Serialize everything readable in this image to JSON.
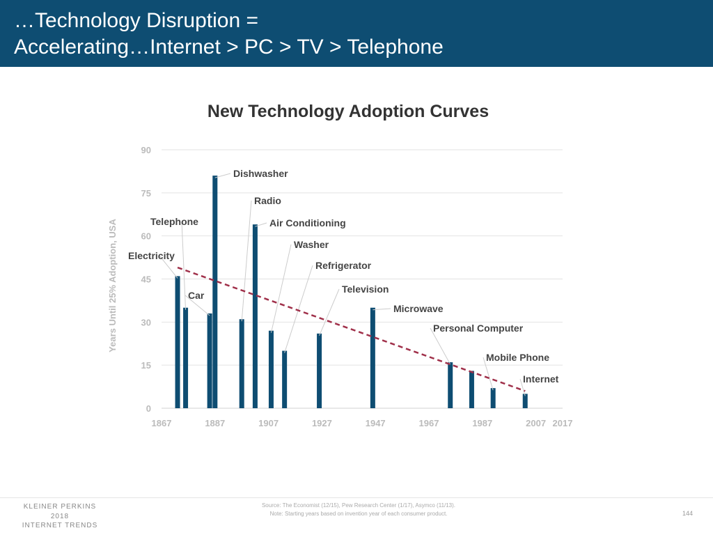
{
  "header": {
    "line1": "…Technology Disruption =",
    "line2": "Accelerating…Internet > PC > TV > Telephone",
    "bg": "#0e4d72"
  },
  "chart_data": {
    "type": "bar",
    "title": "New Technology Adoption Curves",
    "ylabel": "Years Until 25% Adoption, USA",
    "xlabel": "",
    "xlim": [
      1867,
      2017
    ],
    "ylim": [
      0,
      90
    ],
    "xticks": [
      "1867",
      "1887",
      "1907",
      "1927",
      "1947",
      "1967",
      "1987",
      "2007",
      "2017"
    ],
    "yticks": [
      "0",
      "15",
      "30",
      "45",
      "60",
      "75",
      "90"
    ],
    "grid": true,
    "bar_color": "#0e4d72",
    "bars": [
      {
        "label": "Electricity",
        "year": 1873,
        "value": 46
      },
      {
        "label": "Telephone",
        "year": 1876,
        "value": 35
      },
      {
        "label": "Car",
        "year": 1885,
        "value": 33
      },
      {
        "label": "Dishwasher",
        "year": 1887,
        "value": 81
      },
      {
        "label": "Radio",
        "year": 1897,
        "value": 31
      },
      {
        "label": "Air Conditioning",
        "year": 1902,
        "value": 64
      },
      {
        "label": "Washer",
        "year": 1908,
        "value": 27
      },
      {
        "label": "Refrigerator",
        "year": 1913,
        "value": 20
      },
      {
        "label": "Television",
        "year": 1926,
        "value": 26
      },
      {
        "label": "Microwave",
        "year": 1946,
        "value": 35
      },
      {
        "label": "Personal Computer",
        "year": 1975,
        "value": 16
      },
      {
        "label": "",
        "year": 1983,
        "value": 13
      },
      {
        "label": "Mobile Phone",
        "year": 1991,
        "value": 7
      },
      {
        "label": "Internet",
        "year": 2003,
        "value": 5
      }
    ],
    "trendline": {
      "color": "#a0304a",
      "style": "dashed",
      "from": [
        1873,
        49
      ],
      "to": [
        2003,
        6
      ]
    }
  },
  "footer": {
    "brand1": "KLEINER PERKINS",
    "brand2": "2018",
    "brand3": "INTERNET TRENDS",
    "source": "Source: The Economist (12/15), Pew Research Center (1/17), Asymco (11/13).",
    "note": "Note: Starting years based on invention year of each consumer product.",
    "page": "144"
  }
}
